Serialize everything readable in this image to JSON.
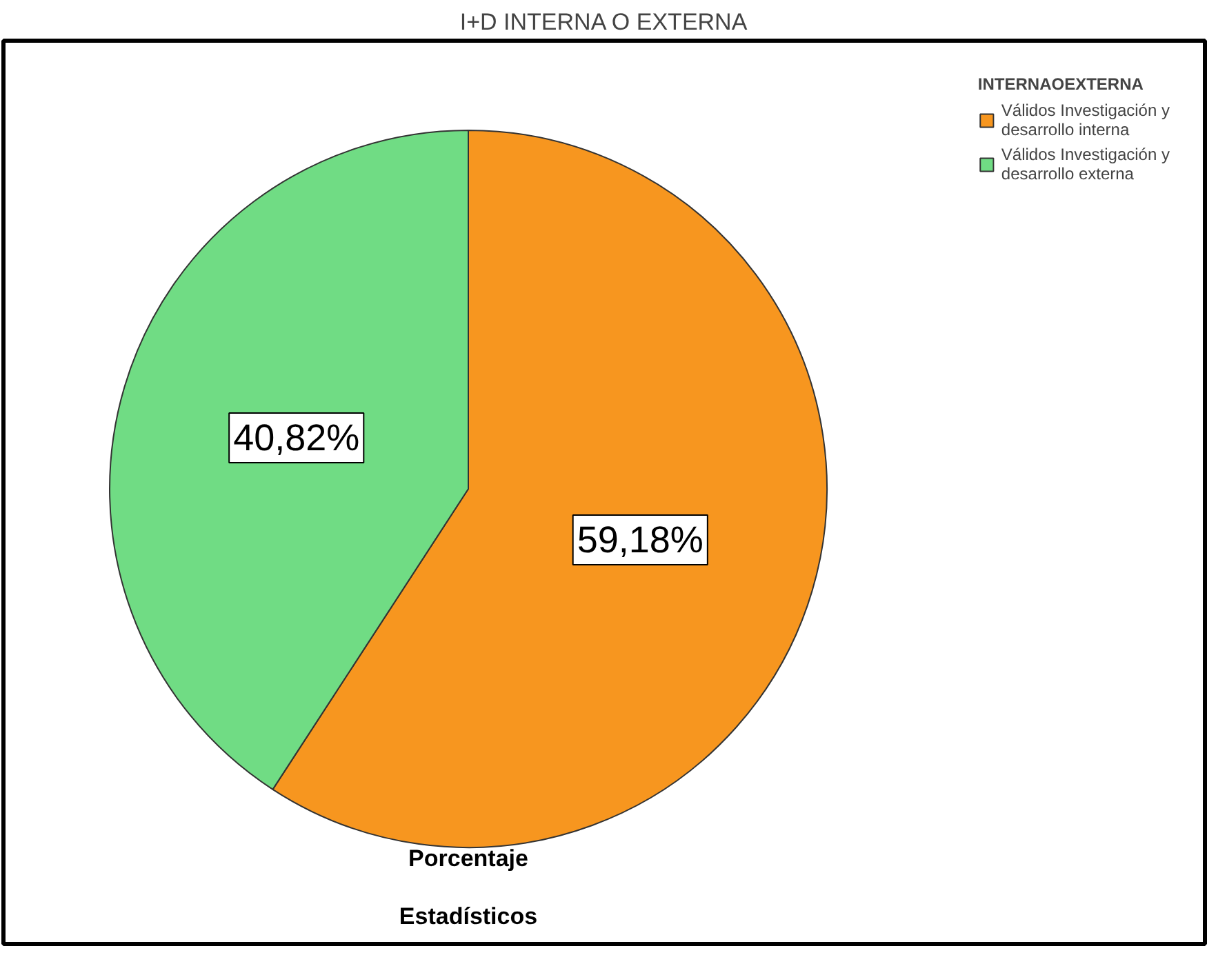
{
  "chart_data": {
    "type": "pie",
    "title": "I+D INTERNA O EXTERNA",
    "legend_title": "INTERNAOEXTERNA",
    "categories": [
      "Válidos Investigación y desarrollo interna",
      "Válidos Investigación y desarrollo externa"
    ],
    "values": [
      59.18,
      40.82
    ],
    "colors": [
      "#f7961f",
      "#70dc84"
    ],
    "value_labels": [
      "59,18%",
      "40,82%"
    ],
    "xlabel": "Porcentaje",
    "annotations": [
      "Estadísticos"
    ],
    "legend": "top right"
  }
}
